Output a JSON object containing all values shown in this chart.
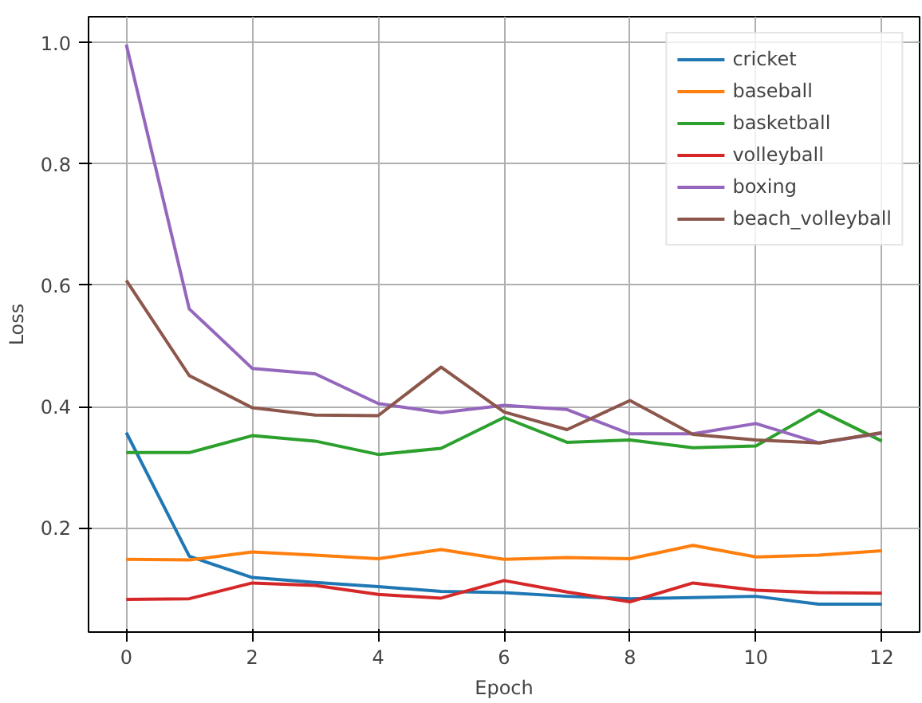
{
  "chart_data": {
    "type": "line",
    "xlabel": "Epoch",
    "ylabel": "Loss",
    "x": [
      0,
      1,
      2,
      3,
      4,
      5,
      6,
      7,
      8,
      9,
      10,
      11,
      12
    ],
    "series": [
      {
        "name": "cricket",
        "color": "#1f77b4",
        "values": [
          0.357,
          0.153,
          0.118,
          0.11,
          0.103,
          0.095,
          0.093,
          0.087,
          0.083,
          0.085,
          0.087,
          0.074,
          0.074
        ]
      },
      {
        "name": "baseball",
        "color": "#ff7f0e",
        "values": [
          0.148,
          0.147,
          0.16,
          0.155,
          0.149,
          0.164,
          0.148,
          0.151,
          0.149,
          0.171,
          0.152,
          0.155,
          0.162
        ]
      },
      {
        "name": "basketball",
        "color": "#2ca02c",
        "values": [
          0.324,
          0.324,
          0.352,
          0.343,
          0.321,
          0.331,
          0.382,
          0.341,
          0.345,
          0.332,
          0.335,
          0.394,
          0.343
        ]
      },
      {
        "name": "volleyball",
        "color": "#d62728",
        "values": [
          0.082,
          0.083,
          0.109,
          0.105,
          0.09,
          0.084,
          0.113,
          0.094,
          0.078,
          0.109,
          0.097,
          0.093,
          0.092
        ]
      },
      {
        "name": "boxing",
        "color": "#9467bd",
        "values": [
          0.997,
          0.561,
          0.463,
          0.454,
          0.405,
          0.39,
          0.402,
          0.395,
          0.355,
          0.355,
          0.372,
          0.34,
          0.356
        ]
      },
      {
        "name": "beach_volleyball",
        "color": "#8c564b",
        "values": [
          0.608,
          0.451,
          0.398,
          0.386,
          0.385,
          0.465,
          0.391,
          0.362,
          0.41,
          0.354,
          0.345,
          0.34,
          0.357
        ]
      }
    ],
    "xlim": [
      -0.6,
      12.6
    ],
    "ylim": [
      0.028,
      1.043
    ],
    "xticks": [
      0,
      2,
      4,
      6,
      8,
      10,
      12
    ],
    "yticks": [
      0.2,
      0.4,
      0.6,
      0.8,
      {
        "value": 1,
        "label": "1.0"
      }
    ],
    "grid": true,
    "legend": "top right"
  }
}
